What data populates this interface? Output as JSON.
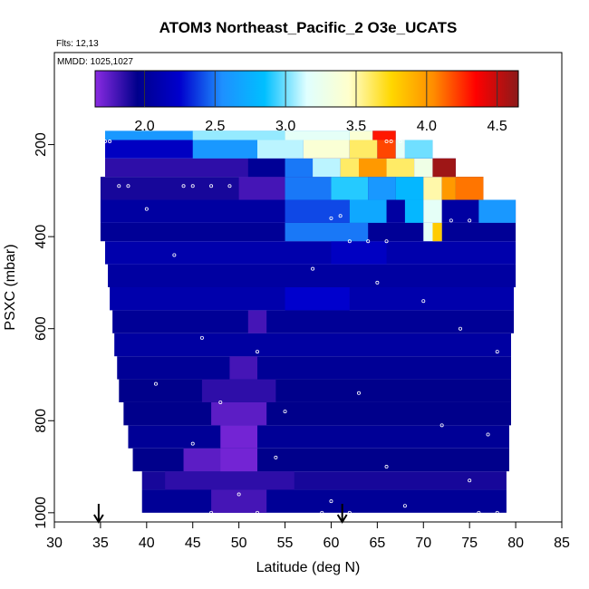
{
  "chart_data": {
    "type": "heatmap",
    "title": "ATOM3 Northeast_Pacific_2 O3e_UCATS",
    "subtitle_lines": [
      "Flts: 12,13",
      "MMDD: 1025,1027"
    ],
    "xlabel": "Latitude (deg N)",
    "ylabel": "PSXC (mbar)",
    "xlim": [
      30,
      85
    ],
    "ylim": [
      1020,
      0
    ],
    "x_ticks": [
      30,
      35,
      40,
      45,
      50,
      55,
      60,
      65,
      70,
      75,
      80,
      85
    ],
    "y_ticks": [
      200,
      400,
      600,
      800,
      1000
    ],
    "colorbar": {
      "range": [
        1.65,
        4.65
      ],
      "ticks": [
        2.0,
        2.5,
        3.0,
        3.5,
        4.0,
        4.5
      ],
      "tick_labels": [
        "2.0",
        "2.5",
        "3.0",
        "3.5",
        "4.0",
        "4.5"
      ],
      "colors": [
        "#8a2be2",
        "#00008b",
        "#0000cd",
        "#1e90ff",
        "#00bfff",
        "#e0ffff",
        "#ffffcc",
        "#ffd700",
        "#ff8c00",
        "#ff0000",
        "#8b1a1a"
      ]
    },
    "arrows_lat": [
      34.8,
      61.2
    ],
    "bands": [
      {
        "p": [
          1000,
          950
        ],
        "lat": [
          39.5,
          79.0
        ],
        "v": 2.0,
        "cells": [
          [
            47,
            53,
            1.8
          ]
        ]
      },
      {
        "p": [
          950,
          910
        ],
        "lat": [
          39.5,
          79.0
        ],
        "v": 1.9,
        "cells": [
          [
            42,
            56,
            1.85
          ]
        ]
      },
      {
        "p": [
          910,
          860
        ],
        "lat": [
          38.5,
          79.3
        ],
        "v": 1.95,
        "cells": [
          [
            44,
            52,
            1.75
          ],
          [
            48,
            52,
            1.7
          ]
        ]
      },
      {
        "p": [
          860,
          810
        ],
        "lat": [
          38.0,
          79.3
        ],
        "v": 2.0,
        "cells": [
          [
            48,
            52,
            1.7
          ]
        ]
      },
      {
        "p": [
          810,
          760
        ],
        "lat": [
          37.5,
          79.5
        ],
        "v": 1.95,
        "cells": [
          [
            47,
            53,
            1.75
          ]
        ]
      },
      {
        "p": [
          760,
          710
        ],
        "lat": [
          37.0,
          79.5
        ],
        "v": 1.95,
        "cells": [
          [
            46,
            54,
            1.85
          ]
        ]
      },
      {
        "p": [
          710,
          660
        ],
        "lat": [
          36.8,
          79.5
        ],
        "v": 2.0,
        "cells": [
          [
            49,
            52,
            1.8
          ]
        ]
      },
      {
        "p": [
          660,
          610
        ],
        "lat": [
          36.5,
          79.5
        ],
        "v": 2.05,
        "cells": []
      },
      {
        "p": [
          610,
          560
        ],
        "lat": [
          36.3,
          79.8
        ],
        "v": 2.0,
        "cells": [
          [
            51,
            53,
            1.8
          ]
        ]
      },
      {
        "p": [
          560,
          510
        ],
        "lat": [
          36.0,
          79.8
        ],
        "v": 2.1,
        "cells": [
          [
            55,
            62,
            2.25
          ]
        ]
      },
      {
        "p": [
          510,
          460
        ],
        "lat": [
          35.8,
          80.0
        ],
        "v": 2.05,
        "cells": []
      },
      {
        "p": [
          460,
          410
        ],
        "lat": [
          35.5,
          80.0
        ],
        "v": 2.1,
        "cells": [
          [
            60,
            66,
            2.2
          ]
        ]
      },
      {
        "p": [
          410,
          370
        ],
        "lat": [
          35.0,
          80.0
        ],
        "v": 2.0,
        "cells": [
          [
            55,
            64,
            2.5
          ],
          [
            70,
            72,
            3.2
          ],
          [
            71,
            72,
            3.8
          ]
        ]
      },
      {
        "p": [
          370,
          320
        ],
        "lat": [
          35.0,
          80.0
        ],
        "v": 2.05,
        "cells": [
          [
            55,
            62,
            2.4
          ],
          [
            62,
            66,
            2.7
          ],
          [
            68,
            70,
            2.8
          ],
          [
            70,
            72,
            3.2
          ],
          [
            76,
            80,
            2.6
          ]
        ]
      },
      {
        "p": [
          320,
          270
        ],
        "lat": [
          35.0,
          76.5
        ],
        "v": 1.9,
        "cells": [
          [
            50,
            55,
            1.8
          ],
          [
            55,
            60,
            2.5
          ],
          [
            60,
            64,
            2.9
          ],
          [
            64,
            67,
            2.6
          ],
          [
            67,
            70,
            2.8
          ],
          [
            70,
            72,
            3.5
          ],
          [
            72,
            73.5,
            4.0
          ],
          [
            73.5,
            76.5,
            4.1
          ]
        ]
      },
      {
        "p": [
          270,
          230
        ],
        "lat": [
          35.5,
          73.5
        ],
        "v": 1.85,
        "cells": [
          [
            51,
            55,
            2.0
          ],
          [
            55,
            58,
            2.5
          ],
          [
            58,
            61,
            3.1
          ],
          [
            61,
            63,
            3.6
          ],
          [
            63,
            66,
            4.0
          ],
          [
            66,
            69,
            3.6
          ],
          [
            69,
            71,
            3.3
          ],
          [
            71,
            73.5,
            4.6
          ]
        ]
      },
      {
        "p": [
          230,
          190
        ],
        "lat": [
          35.5,
          71.0
        ],
        "v": 2.2,
        "cells": [
          [
            45,
            52,
            2.6
          ],
          [
            52,
            57,
            3.1
          ],
          [
            57,
            62,
            3.4
          ],
          [
            62,
            65,
            3.6
          ],
          [
            65,
            67,
            4.2
          ],
          [
            67,
            68,
            3.2
          ],
          [
            68,
            71,
            3.0
          ]
        ]
      },
      {
        "p": [
          190,
          170
        ],
        "lat": [
          35.5,
          67.0
        ],
        "v": 2.6,
        "cells": [
          [
            45,
            55,
            3.05
          ],
          [
            55,
            62,
            3.2
          ],
          [
            62,
            64.5,
            3.4
          ],
          [
            64.5,
            67,
            4.3
          ]
        ]
      }
    ],
    "sample_points": [
      [
        35.5,
        193
      ],
      [
        36,
        193
      ],
      [
        66,
        193
      ],
      [
        66.5,
        193
      ],
      [
        67.5,
        193
      ],
      [
        37,
        290
      ],
      [
        38,
        290
      ],
      [
        44,
        290
      ],
      [
        45,
        290
      ],
      [
        47,
        290
      ],
      [
        49,
        290
      ],
      [
        61,
        355
      ],
      [
        60,
        360
      ],
      [
        73,
        365
      ],
      [
        75,
        365
      ],
      [
        62,
        410
      ],
      [
        64,
        410
      ],
      [
        66,
        410
      ],
      [
        40,
        340
      ],
      [
        43,
        440
      ],
      [
        46,
        620
      ],
      [
        52,
        650
      ],
      [
        58,
        470
      ],
      [
        65,
        500
      ],
      [
        70,
        540
      ],
      [
        74,
        600
      ],
      [
        78,
        650
      ],
      [
        41,
        720
      ],
      [
        48,
        760
      ],
      [
        55,
        780
      ],
      [
        63,
        740
      ],
      [
        72,
        810
      ],
      [
        77,
        830
      ],
      [
        45,
        850
      ],
      [
        54,
        880
      ],
      [
        66,
        900
      ],
      [
        75,
        930
      ],
      [
        50,
        960
      ],
      [
        60,
        975
      ],
      [
        68,
        985
      ],
      [
        39,
        1000
      ],
      [
        47,
        1000
      ],
      [
        52,
        1000
      ],
      [
        59,
        1000
      ],
      [
        62,
        1000
      ],
      [
        76,
        1000
      ],
      [
        78,
        1000
      ]
    ]
  }
}
